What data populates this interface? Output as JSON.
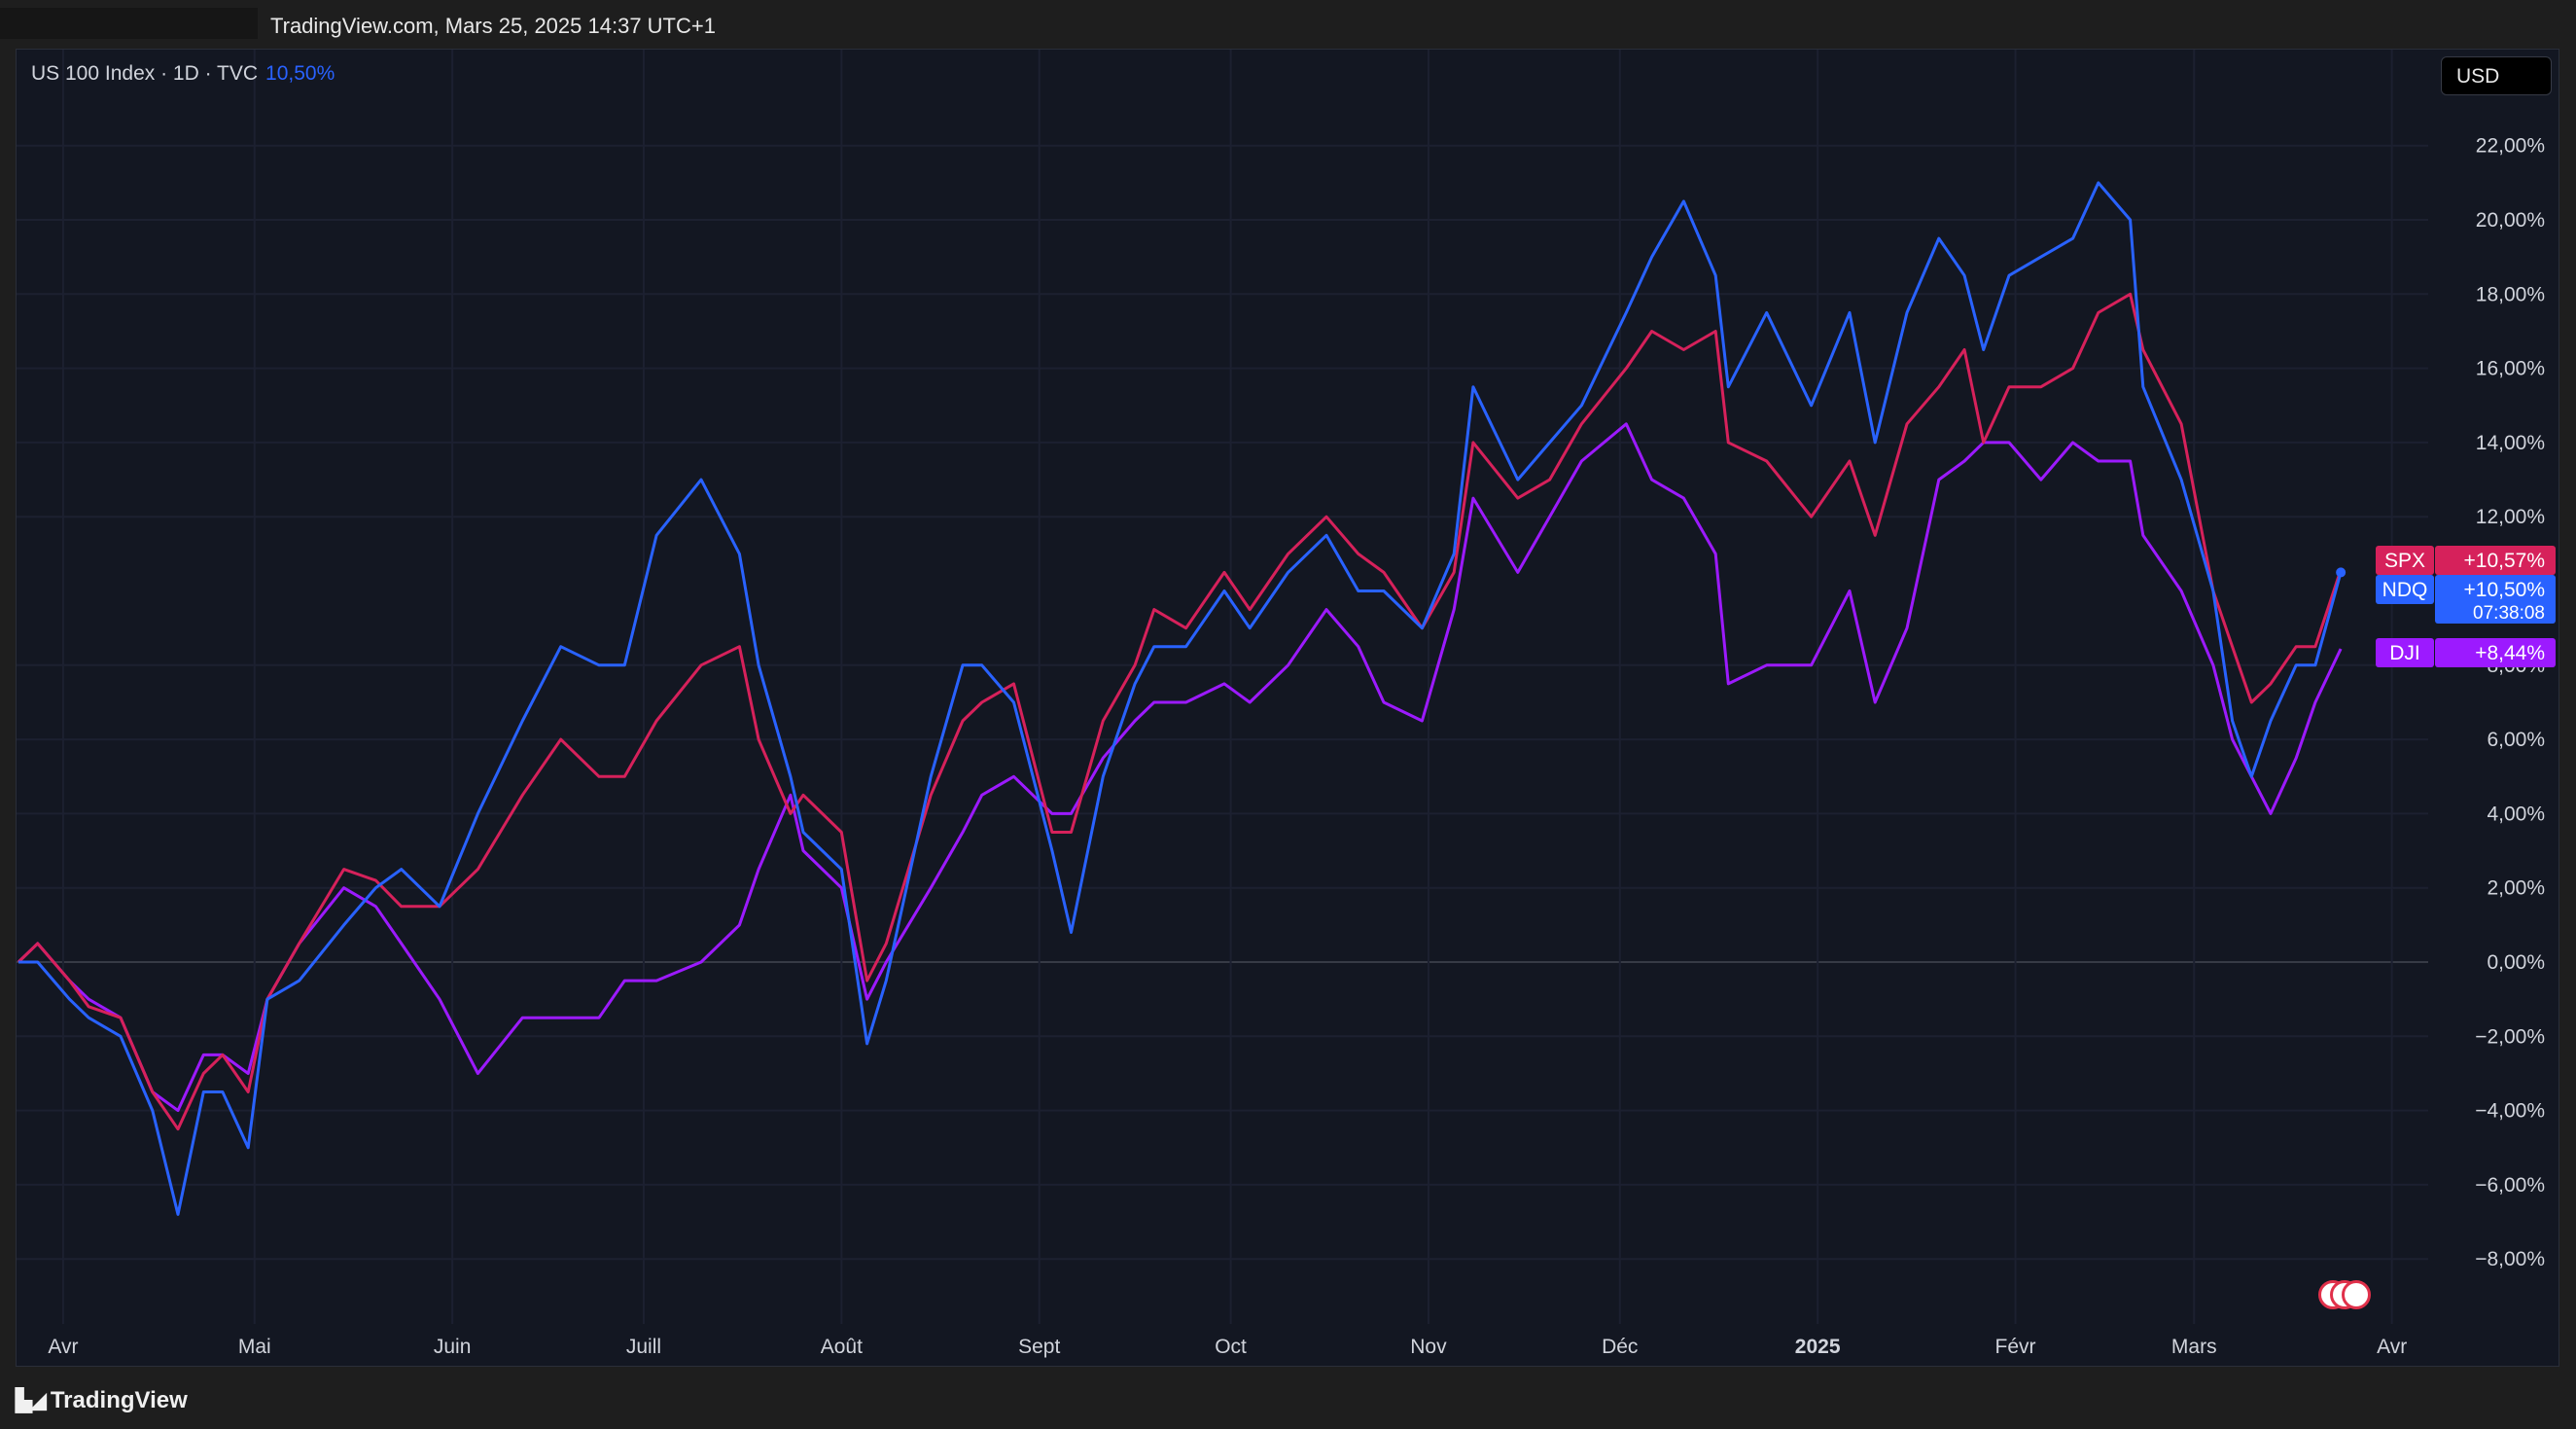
{
  "header": {
    "stamp": "TradingView.com, Mars 25, 2025 14:37 UTC+1"
  },
  "legend": {
    "symbol": "US 100 Index · 1D · TVC",
    "value": "10,50%"
  },
  "currency_button": "USD",
  "footer": {
    "brand": "TradingView",
    "logo_icon": "tradingview-logo-icon"
  },
  "colors": {
    "background": "#131722",
    "spx": "#d6215b",
    "ndq": "#2962ff",
    "dji": "#9c1aff",
    "axis_text": "#d1d4dc"
  },
  "chart_data": {
    "type": "line",
    "x_ticks": [
      "Avr",
      "Mai",
      "Juin",
      "Juill",
      "Août",
      "Sept",
      "Oct",
      "Nov",
      "Déc",
      "2025",
      "Févr",
      "Mars",
      "Avr"
    ],
    "y_ticks": [
      "22,00%",
      "20,00%",
      "18,00%",
      "16,00%",
      "14,00%",
      "12,00%",
      "8,00%",
      "6,00%",
      "4,00%",
      "2,00%",
      "0,00%",
      "−2,00%",
      "−4,00%",
      "−6,00%",
      "−8,00%"
    ],
    "ylim": [
      -9,
      23.5
    ],
    "x_range": [
      "2024-03-25",
      "2025-04-07"
    ],
    "series": [
      {
        "name": "SPX",
        "label_value": "+10,57%",
        "x_dates": [
          "2024-03-25",
          "2024-03-28",
          "2024-04-02",
          "2024-04-05",
          "2024-04-10",
          "2024-04-15",
          "2024-04-19",
          "2024-04-23",
          "2024-04-26",
          "2024-04-30",
          "2024-05-03",
          "2024-05-08",
          "2024-05-15",
          "2024-05-20",
          "2024-05-24",
          "2024-05-30",
          "2024-06-05",
          "2024-06-12",
          "2024-06-18",
          "2024-06-24",
          "2024-06-28",
          "2024-07-03",
          "2024-07-10",
          "2024-07-16",
          "2024-07-19",
          "2024-07-24",
          "2024-07-26",
          "2024-08-01",
          "2024-08-05",
          "2024-08-08",
          "2024-08-15",
          "2024-08-20",
          "2024-08-23",
          "2024-08-28",
          "2024-09-03",
          "2024-09-06",
          "2024-09-11",
          "2024-09-16",
          "2024-09-19",
          "2024-09-24",
          "2024-09-30",
          "2024-10-04",
          "2024-10-10",
          "2024-10-16",
          "2024-10-21",
          "2024-10-25",
          "2024-10-31",
          "2024-11-05",
          "2024-11-08",
          "2024-11-15",
          "2024-11-20",
          "2024-11-25",
          "2024-12-02",
          "2024-12-06",
          "2024-12-11",
          "2024-12-16",
          "2024-12-18",
          "2024-12-24",
          "2024-12-31",
          "2025-01-06",
          "2025-01-10",
          "2025-01-15",
          "2025-01-20",
          "2025-01-24",
          "2025-01-27",
          "2025-01-31",
          "2025-02-05",
          "2025-02-10",
          "2025-02-14",
          "2025-02-19",
          "2025-02-21",
          "2025-02-27",
          "2025-03-04",
          "2025-03-07",
          "2025-03-10",
          "2025-03-13",
          "2025-03-17",
          "2025-03-20",
          "2025-03-24"
        ],
        "values": [
          0.0,
          0.5,
          -0.5,
          -1.2,
          -1.5,
          -3.5,
          -4.5,
          -3.0,
          -2.5,
          -3.5,
          -1.0,
          0.5,
          2.5,
          2.2,
          1.5,
          1.5,
          2.5,
          4.5,
          6.0,
          5.0,
          5.0,
          6.5,
          8.0,
          8.5,
          6.0,
          4.0,
          4.5,
          3.5,
          -0.5,
          0.5,
          4.5,
          6.5,
          7.0,
          7.5,
          3.5,
          3.5,
          6.5,
          8.0,
          9.5,
          9.0,
          10.5,
          9.5,
          11.0,
          12.0,
          11.0,
          10.5,
          9.0,
          10.5,
          14.0,
          12.5,
          13.0,
          14.5,
          16.0,
          17.0,
          16.5,
          17.0,
          14.0,
          13.5,
          12.0,
          13.5,
          11.5,
          14.5,
          15.5,
          16.5,
          14.0,
          15.5,
          15.5,
          16.0,
          17.5,
          18.0,
          16.5,
          14.5,
          10.0,
          8.5,
          7.0,
          7.5,
          8.5,
          8.5,
          10.57
        ]
      },
      {
        "name": "NDQ",
        "label_value": "+10,50%",
        "time_label": "07:38:08",
        "x_dates": [
          "2024-03-25",
          "2024-03-28",
          "2024-04-02",
          "2024-04-05",
          "2024-04-10",
          "2024-04-15",
          "2024-04-19",
          "2024-04-23",
          "2024-04-26",
          "2024-04-30",
          "2024-05-03",
          "2024-05-08",
          "2024-05-15",
          "2024-05-20",
          "2024-05-24",
          "2024-05-30",
          "2024-06-05",
          "2024-06-12",
          "2024-06-18",
          "2024-06-24",
          "2024-06-28",
          "2024-07-03",
          "2024-07-10",
          "2024-07-16",
          "2024-07-19",
          "2024-07-24",
          "2024-07-26",
          "2024-08-01",
          "2024-08-05",
          "2024-08-08",
          "2024-08-15",
          "2024-08-20",
          "2024-08-23",
          "2024-08-28",
          "2024-09-03",
          "2024-09-06",
          "2024-09-11",
          "2024-09-16",
          "2024-09-19",
          "2024-09-24",
          "2024-09-30",
          "2024-10-04",
          "2024-10-10",
          "2024-10-16",
          "2024-10-21",
          "2024-10-25",
          "2024-10-31",
          "2024-11-05",
          "2024-11-08",
          "2024-11-15",
          "2024-11-20",
          "2024-11-25",
          "2024-12-02",
          "2024-12-06",
          "2024-12-11",
          "2024-12-16",
          "2024-12-18",
          "2024-12-24",
          "2024-12-31",
          "2025-01-06",
          "2025-01-10",
          "2025-01-15",
          "2025-01-20",
          "2025-01-24",
          "2025-01-27",
          "2025-01-31",
          "2025-02-05",
          "2025-02-10",
          "2025-02-14",
          "2025-02-19",
          "2025-02-21",
          "2025-02-27",
          "2025-03-04",
          "2025-03-07",
          "2025-03-10",
          "2025-03-13",
          "2025-03-17",
          "2025-03-20",
          "2025-03-24"
        ],
        "values": [
          0.0,
          0.0,
          -1.0,
          -1.5,
          -2.0,
          -4.0,
          -6.8,
          -3.5,
          -3.5,
          -5.0,
          -1.0,
          -0.5,
          1.0,
          2.0,
          2.5,
          1.5,
          4.0,
          6.5,
          8.5,
          8.0,
          8.0,
          11.5,
          13.0,
          11.0,
          8.0,
          5.0,
          3.5,
          2.5,
          -2.2,
          -0.5,
          5.0,
          8.0,
          8.0,
          7.0,
          3.0,
          0.8,
          5.0,
          7.5,
          8.5,
          8.5,
          10.0,
          9.0,
          10.5,
          11.5,
          10.0,
          10.0,
          9.0,
          11.0,
          15.5,
          13.0,
          14.0,
          15.0,
          17.5,
          19.0,
          20.5,
          18.5,
          15.5,
          17.5,
          15.0,
          17.5,
          14.0,
          17.5,
          19.5,
          18.5,
          16.5,
          18.5,
          19.0,
          19.5,
          21.0,
          20.0,
          15.5,
          13.0,
          10.0,
          6.5,
          5.0,
          6.5,
          8.0,
          8.0,
          10.5
        ]
      },
      {
        "name": "DJI",
        "label_value": "+8,44%",
        "x_dates": [
          "2024-03-25",
          "2024-03-28",
          "2024-04-02",
          "2024-04-05",
          "2024-04-10",
          "2024-04-15",
          "2024-04-19",
          "2024-04-23",
          "2024-04-26",
          "2024-04-30",
          "2024-05-03",
          "2024-05-08",
          "2024-05-15",
          "2024-05-20",
          "2024-05-24",
          "2024-05-30",
          "2024-06-05",
          "2024-06-12",
          "2024-06-18",
          "2024-06-24",
          "2024-06-28",
          "2024-07-03",
          "2024-07-10",
          "2024-07-16",
          "2024-07-19",
          "2024-07-24",
          "2024-07-26",
          "2024-08-01",
          "2024-08-05",
          "2024-08-08",
          "2024-08-15",
          "2024-08-20",
          "2024-08-23",
          "2024-08-28",
          "2024-09-03",
          "2024-09-06",
          "2024-09-11",
          "2024-09-16",
          "2024-09-19",
          "2024-09-24",
          "2024-09-30",
          "2024-10-04",
          "2024-10-10",
          "2024-10-16",
          "2024-10-21",
          "2024-10-25",
          "2024-10-31",
          "2024-11-05",
          "2024-11-08",
          "2024-11-15",
          "2024-11-20",
          "2024-11-25",
          "2024-12-02",
          "2024-12-06",
          "2024-12-11",
          "2024-12-16",
          "2024-12-18",
          "2024-12-24",
          "2024-12-31",
          "2025-01-06",
          "2025-01-10",
          "2025-01-15",
          "2025-01-20",
          "2025-01-24",
          "2025-01-27",
          "2025-01-31",
          "2025-02-05",
          "2025-02-10",
          "2025-02-14",
          "2025-02-19",
          "2025-02-21",
          "2025-02-27",
          "2025-03-04",
          "2025-03-07",
          "2025-03-10",
          "2025-03-13",
          "2025-03-17",
          "2025-03-20",
          "2025-03-24"
        ],
        "values": [
          0.0,
          0.5,
          -0.5,
          -1.0,
          -1.5,
          -3.5,
          -4.0,
          -2.5,
          -2.5,
          -3.0,
          -1.0,
          0.5,
          2.0,
          1.5,
          0.5,
          -1.0,
          -3.0,
          -1.5,
          -1.5,
          -1.5,
          -0.5,
          -0.5,
          0.0,
          1.0,
          2.5,
          4.5,
          3.0,
          2.0,
          -1.0,
          0.0,
          2.0,
          3.5,
          4.5,
          5.0,
          4.0,
          4.0,
          5.5,
          6.5,
          7.0,
          7.0,
          7.5,
          7.0,
          8.0,
          9.5,
          8.5,
          7.0,
          6.5,
          9.5,
          12.5,
          10.5,
          12.0,
          13.5,
          14.5,
          13.0,
          12.5,
          11.0,
          7.5,
          8.0,
          8.0,
          10.0,
          7.0,
          9.0,
          13.0,
          13.5,
          14.0,
          14.0,
          13.0,
          14.0,
          13.5,
          13.5,
          11.5,
          10.0,
          8.0,
          6.0,
          5.0,
          4.0,
          5.5,
          7.0,
          8.44
        ]
      }
    ]
  }
}
